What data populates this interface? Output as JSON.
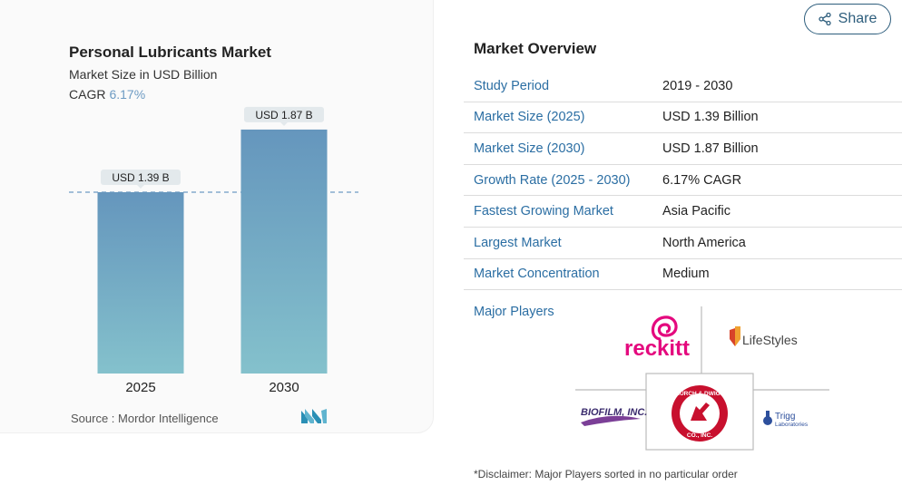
{
  "chart": {
    "title": "Personal Lubricants Market",
    "subtitle": "Market Size in USD Billion",
    "cagr_label": "CAGR",
    "cagr_value": "6.17%",
    "source": "Source :  Mordor Intelligence"
  },
  "chart_data": {
    "type": "bar",
    "title": "Personal Lubricants Market",
    "subtitle": "Market Size in USD Billion",
    "categories": [
      "2025",
      "2030"
    ],
    "values": [
      1.39,
      1.87
    ],
    "data_labels": [
      "USD 1.39 B",
      "USD 1.87 B"
    ],
    "xlabel": "",
    "ylabel": "",
    "ylim": [
      0,
      2.05
    ],
    "grid": false,
    "reference_line": 1.39,
    "colors": {
      "bar_top": "#6596bd",
      "bar_bottom": "#84c1cc",
      "label_bg": "#e3e9ec",
      "ref_line": "#6d9bc3"
    }
  },
  "share": {
    "label": "Share",
    "icon": "share-icon"
  },
  "overview": {
    "title": "Market Overview",
    "rows": [
      {
        "label": "Study Period",
        "value": "2019 - 2030"
      },
      {
        "label": "Market Size (2025)",
        "value": "USD 1.39 Billion"
      },
      {
        "label": "Market Size (2030)",
        "value": "USD 1.87 Billion"
      },
      {
        "label": "Growth Rate (2025 - 2030)",
        "value": "6.17% CAGR"
      },
      {
        "label": "Fastest Growing Market",
        "value": "Asia Pacific"
      },
      {
        "label": "Largest Market",
        "value": "North America"
      },
      {
        "label": "Market Concentration",
        "value": "Medium"
      }
    ]
  },
  "major_players": {
    "label": "Major Players",
    "logos": {
      "reckitt": "reckitt",
      "lifestyles": "LifeStyles",
      "biofilm": "BIOFILM, INC.",
      "church_top": "CHURCH & DWIGHT",
      "church_bottom": "CO., INC.",
      "trigg_top": "Trigg",
      "trigg_bottom": "Laboratories"
    }
  },
  "disclaimer": "*Disclaimer: Major Players sorted in no particular order"
}
